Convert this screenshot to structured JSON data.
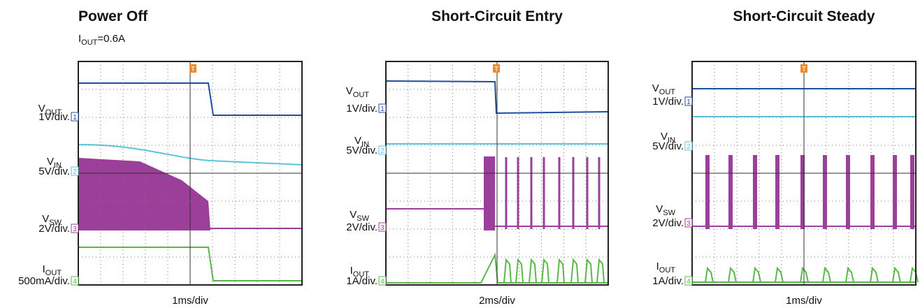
{
  "panels": [
    {
      "title": "Power Off",
      "subtitle": {
        "main": "I",
        "sub": "OUT",
        "rest": "=0.6A"
      },
      "timebase": "1ms/div",
      "trigger": "T",
      "channels": [
        {
          "name": "V",
          "sub": "OUT",
          "scale": "1V/div.",
          "marker": "1"
        },
        {
          "name": "V",
          "sub": "IN",
          "scale": "5V/div.",
          "marker": "2"
        },
        {
          "name": "V",
          "sub": "SW",
          "scale": "2V/div.",
          "marker": "3"
        },
        {
          "name": "I",
          "sub": "OUT",
          "scale": "500mA/div.",
          "marker": "4"
        }
      ]
    },
    {
      "title": "Short-Circuit Entry",
      "timebase": "2ms/div",
      "trigger": "T",
      "channels": [
        {
          "name": "V",
          "sub": "OUT",
          "scale": "1V/div.",
          "marker": "1"
        },
        {
          "name": "V",
          "sub": "IN",
          "scale": "5V/div.",
          "marker": "2"
        },
        {
          "name": "V",
          "sub": "SW",
          "scale": "2V/div.",
          "marker": "3"
        },
        {
          "name": "I",
          "sub": "OUT",
          "scale": "1A/div.",
          "marker": "4"
        }
      ]
    },
    {
      "title": "Short-Circuit Steady",
      "timebase": "1ms/div",
      "trigger": "T",
      "channels": [
        {
          "name": "V",
          "sub": "OUT",
          "scale": "1V/div.",
          "marker": "1"
        },
        {
          "name": "V",
          "sub": "IN",
          "scale": "5V/div.",
          "marker": "2"
        },
        {
          "name": "V",
          "sub": "SW",
          "scale": "2V/div.",
          "marker": "3"
        },
        {
          "name": "I",
          "sub": "OUT",
          "scale": "1A/div.",
          "marker": "4"
        }
      ]
    }
  ]
}
